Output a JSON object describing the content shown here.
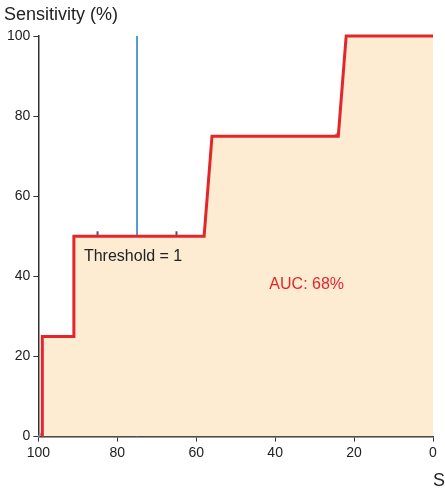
{
  "chart_data": {
    "type": "line",
    "x_label": "Specificity (%)",
    "y_label": "Sensitivity (%)",
    "xlim": [
      100,
      0
    ],
    "ylim": [
      0,
      100
    ],
    "xticks": [
      100,
      80,
      60,
      40,
      20,
      0
    ],
    "yticks": [
      0,
      20,
      40,
      60,
      80,
      100
    ],
    "grid": false,
    "series": [
      {
        "type": "area",
        "color": "#e3262b",
        "line_style": "solid",
        "marker": "none",
        "x": [
          99,
          99,
          91,
          91,
          58,
          56,
          24,
          22,
          0
        ],
        "values": [
          0,
          25,
          25,
          50,
          50,
          75,
          75,
          100,
          100
        ]
      },
      {
        "type": "line",
        "color": "#9a9a9a",
        "line_style": "solid",
        "marker": "none",
        "x": [
          100,
          0
        ],
        "values": [
          0,
          100
        ]
      },
      {
        "type": "line",
        "color": "#1f7ac4",
        "line_style": "solid",
        "marker": "none",
        "x": [
          75,
          75
        ],
        "values": [
          0,
          100
        ]
      },
      {
        "type": "line",
        "color": "#4b4e8c",
        "line_style": "solid",
        "marker": "tick",
        "x": [
          85,
          65
        ],
        "values": [
          50,
          50
        ]
      }
    ],
    "annotations": [
      {
        "text": "Threshold = 1",
        "x": 76,
        "y": 45,
        "color": "#222222"
      },
      {
        "text": "AUC: 68%",
        "x": 32,
        "y": 38,
        "color": "#e3262b"
      }
    ]
  }
}
